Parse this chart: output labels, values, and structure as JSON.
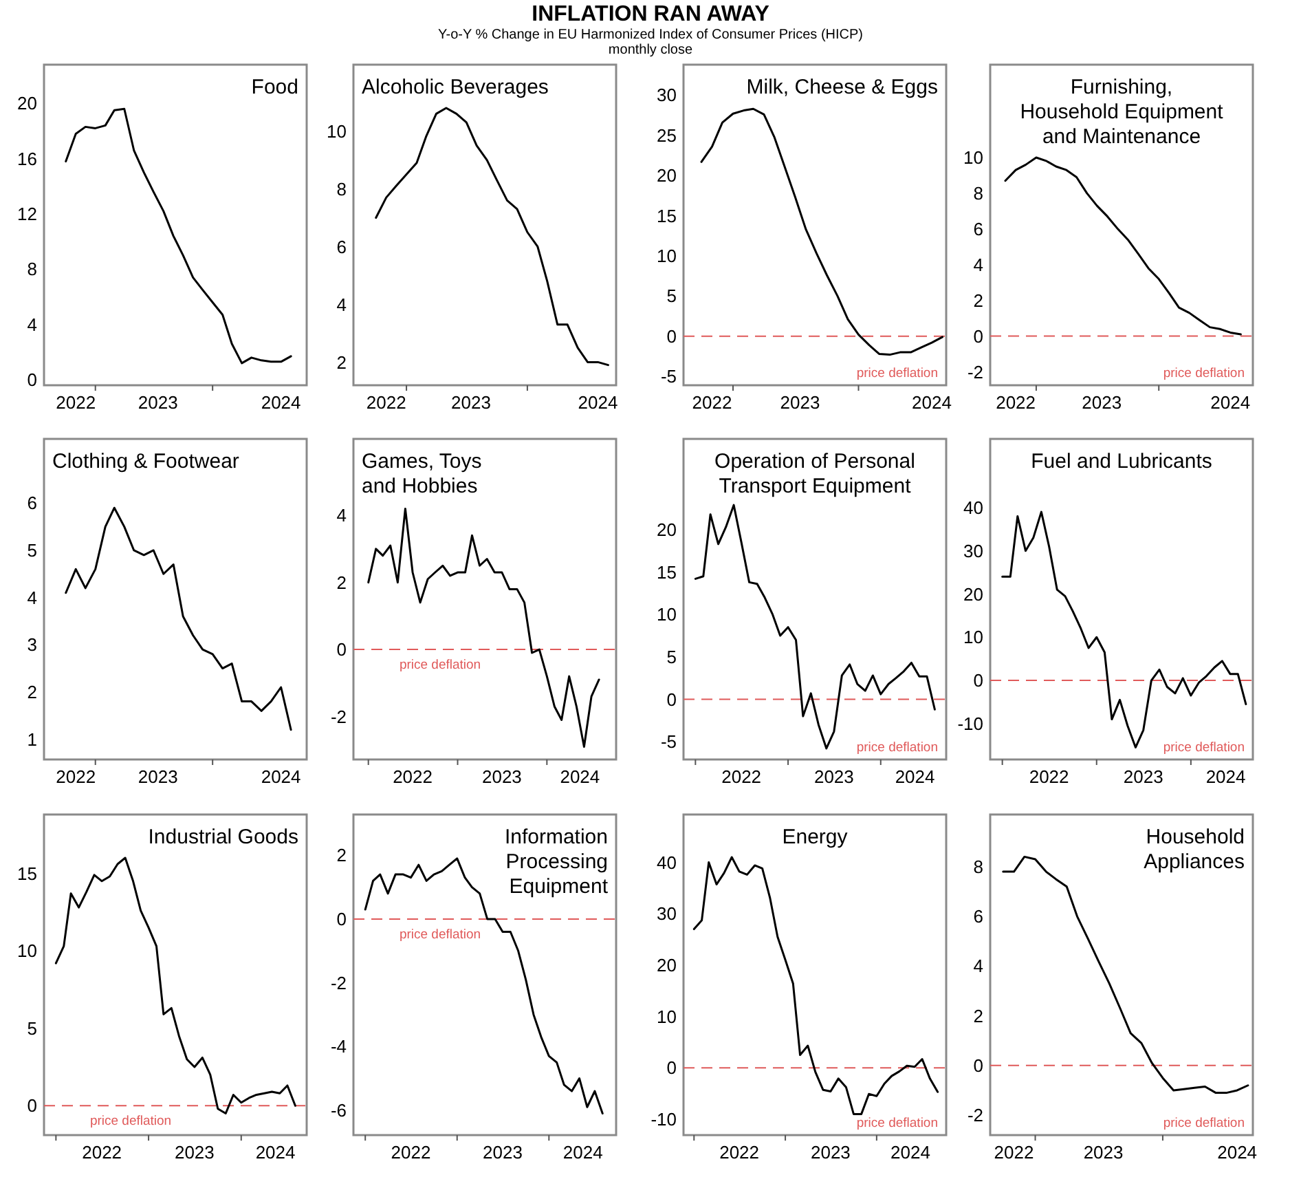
{
  "chart_data": [
    {
      "type": "other",
      "title": "INFLATION RAN AWAY",
      "subtitle": "Y-o-Y % Change in EU Harmonized Index of Consumer Prices (HICP)\nmonthly close"
    },
    {
      "type": "line",
      "title": "Food",
      "color": "#000000",
      "x": [
        "2022-10",
        "2022-11",
        "2022-12",
        "2023-01",
        "2023-02",
        "2023-03",
        "2023-04",
        "2023-05",
        "2023-06",
        "2023-07",
        "2023-08",
        "2023-09",
        "2023-10",
        "2023-11",
        "2023-12",
        "2024-01",
        "2024-02",
        "2024-03",
        "2024-04",
        "2024-05",
        "2024-06",
        "2024-07",
        "2024-08",
        "2024-09"
      ],
      "values": [
        15.8,
        17.8,
        18.3,
        18.2,
        18.4,
        19.5,
        19.6,
        16.6,
        15.0,
        13.6,
        12.2,
        10.4,
        9.0,
        7.4,
        6.5,
        5.6,
        4.7,
        2.6,
        1.2,
        1.6,
        1.4,
        1.3,
        1.3,
        1.7
      ],
      "xlim": [
        "2022-07-25",
        "2024-10-20"
      ],
      "ylim": [
        -0.4,
        22.8
      ],
      "yticks": [
        0,
        4,
        8,
        12,
        16,
        20
      ],
      "xticks": [
        {
          "value": "2022-11-01",
          "label": "2022"
        },
        {
          "value": "2023-01-01",
          "label": null
        },
        {
          "value": "2023-07-15",
          "label": "2023"
        },
        {
          "value": "2024-01-01",
          "label": null
        },
        {
          "value": "2024-08-01",
          "label": "2024"
        }
      ]
    },
    {
      "type": "line",
      "title": "Alcoholic Beverages",
      "color": "#000000",
      "x": [
        "2022-10",
        "2022-11",
        "2022-12",
        "2023-01",
        "2023-02",
        "2023-03",
        "2023-04",
        "2023-05",
        "2023-06",
        "2023-07",
        "2023-08",
        "2023-09",
        "2023-10",
        "2023-11",
        "2023-12",
        "2024-01",
        "2024-02",
        "2024-03",
        "2024-04",
        "2024-05",
        "2024-06",
        "2024-07",
        "2024-08",
        "2024-09"
      ],
      "values": [
        7.0,
        7.7,
        8.1,
        8.5,
        8.9,
        9.8,
        10.6,
        10.8,
        10.6,
        10.3,
        9.5,
        9.0,
        8.3,
        7.6,
        7.3,
        6.5,
        6.0,
        4.8,
        3.3,
        3.3,
        2.5,
        2.0,
        2.0,
        1.9
      ],
      "xlim": [
        "2022-07-25",
        "2024-09-25"
      ],
      "ylim": [
        1.2,
        12.3
      ],
      "yticks": [
        2,
        4,
        6,
        8,
        10
      ],
      "xticks": [
        {
          "value": "2022-11-01",
          "label": "2022"
        },
        {
          "value": "2023-01-01",
          "label": null
        },
        {
          "value": "2023-07-15",
          "label": "2023"
        },
        {
          "value": "2024-01-01",
          "label": null
        },
        {
          "value": "2024-08-01",
          "label": "2024"
        }
      ]
    },
    {
      "type": "line",
      "title": "Milk, Cheese & Eggs",
      "color": "#000000",
      "x": [
        "2022-10",
        "2022-11",
        "2022-12",
        "2023-01",
        "2023-02",
        "2023-03",
        "2023-04",
        "2023-05",
        "2023-06",
        "2023-07",
        "2023-08",
        "2023-09",
        "2023-10",
        "2023-11",
        "2023-12",
        "2024-01",
        "2024-02",
        "2024-03",
        "2024-04",
        "2024-05",
        "2024-06",
        "2024-07",
        "2024-08",
        "2024-09"
      ],
      "values": [
        21.7,
        23.6,
        26.6,
        27.7,
        28.1,
        28.3,
        27.6,
        24.8,
        21.0,
        17.3,
        13.3,
        10.3,
        7.6,
        5.0,
        2.1,
        0.2,
        -1.1,
        -2.2,
        -2.3,
        -2.0,
        -2.0,
        -1.4,
        -0.8,
        -0.1
      ],
      "xlim": [
        "2022-08-10",
        "2024-09-12"
      ],
      "ylim": [
        -6.1,
        33.8
      ],
      "yticks": [
        -5,
        0,
        5,
        10,
        15,
        20,
        25,
        30
      ],
      "xticks": [
        {
          "value": "2022-11-01",
          "label": "2022"
        },
        {
          "value": "2023-01-01",
          "label": null
        },
        {
          "value": "2023-07-15",
          "label": "2023"
        },
        {
          "value": "2024-01-01",
          "label": null
        },
        {
          "value": "2024-08-01",
          "label": "2024"
        }
      ],
      "ref_lines": [
        {
          "axis": "y",
          "value": 0,
          "label": "price deflation",
          "color": "#e05a5a",
          "line_style": "dashed"
        }
      ]
    },
    {
      "type": "line",
      "title": "Furnishing,\nHousehold Equipment\nand Maintenance",
      "color": "#000000",
      "x": [
        "2022-10",
        "2022-11",
        "2022-12",
        "2023-01",
        "2023-02",
        "2023-03",
        "2023-04",
        "2023-05",
        "2023-06",
        "2023-07",
        "2023-08",
        "2023-09",
        "2023-10",
        "2023-11",
        "2023-12",
        "2024-01",
        "2024-02",
        "2024-03",
        "2024-04",
        "2024-05",
        "2024-06",
        "2024-07",
        "2024-08",
        "2024-09"
      ],
      "values": [
        8.7,
        9.3,
        9.6,
        10.0,
        9.8,
        9.5,
        9.3,
        8.9,
        8.0,
        7.3,
        6.7,
        6.0,
        5.4,
        4.6,
        3.8,
        3.2,
        2.4,
        1.6,
        1.3,
        0.9,
        0.5,
        0.4,
        0.2,
        0.1
      ],
      "xlim": [
        "2022-08-17",
        "2024-10-07"
      ],
      "ylim": [
        -2.75,
        15.2
      ],
      "yticks": [
        -2,
        0,
        2,
        4,
        6,
        8,
        10
      ],
      "xticks": [
        {
          "value": "2022-11-01",
          "label": "2022"
        },
        {
          "value": "2023-01-01",
          "label": null
        },
        {
          "value": "2023-07-15",
          "label": "2023"
        },
        {
          "value": "2024-01-01",
          "label": null
        },
        {
          "value": "2024-08-01",
          "label": "2024"
        }
      ],
      "ref_lines": [
        {
          "axis": "y",
          "value": 0,
          "label": "price deflation",
          "color": "#e05a5a",
          "line_style": "dashed"
        }
      ]
    },
    {
      "type": "line",
      "title": "Clothing & Footwear",
      "color": "#000000",
      "x": [
        "2022-10",
        "2022-11",
        "2022-12",
        "2023-01",
        "2023-02",
        "2023-03",
        "2023-04",
        "2023-05",
        "2023-06",
        "2023-07",
        "2023-08",
        "2023-09",
        "2023-10",
        "2023-11",
        "2023-12",
        "2024-01",
        "2024-02",
        "2024-03",
        "2024-04",
        "2024-05",
        "2024-06",
        "2024-07",
        "2024-08",
        "2024-09"
      ],
      "values": [
        4.1,
        4.6,
        4.2,
        4.6,
        5.5,
        5.9,
        5.5,
        5.0,
        4.9,
        5.0,
        4.5,
        4.7,
        3.6,
        3.2,
        2.9,
        2.8,
        2.5,
        2.6,
        1.8,
        1.8,
        1.6,
        1.8,
        2.1,
        1.2
      ],
      "xlim": [
        "2022-07-25",
        "2024-10-20"
      ],
      "ylim": [
        0.57,
        7.36
      ],
      "yticks": [
        1,
        2,
        3,
        4,
        5,
        6
      ],
      "xticks": [
        {
          "value": "2022-11-01",
          "label": "2022"
        },
        {
          "value": "2023-01-01",
          "label": null
        },
        {
          "value": "2023-07-15",
          "label": "2023"
        },
        {
          "value": "2024-01-01",
          "label": null
        },
        {
          "value": "2024-08-01",
          "label": "2024"
        }
      ]
    },
    {
      "type": "line",
      "title": "Games, Toys\nand Hobbies",
      "color": "#000000",
      "x": [
        "2022-01",
        "2022-02",
        "2022-03",
        "2022-04",
        "2022-05",
        "2022-06",
        "2022-07",
        "2022-08",
        "2022-09",
        "2022-10",
        "2022-11",
        "2022-12",
        "2023-01",
        "2023-02",
        "2023-03",
        "2023-04",
        "2023-05",
        "2023-06",
        "2023-07",
        "2023-08",
        "2023-09",
        "2023-10",
        "2023-11",
        "2023-12",
        "2024-01",
        "2024-02",
        "2024-03",
        "2024-04",
        "2024-05",
        "2024-06",
        "2024-07",
        "2024-08"
      ],
      "values": [
        2.0,
        3.0,
        2.8,
        3.1,
        2.0,
        4.2,
        2.3,
        1.4,
        2.1,
        2.3,
        2.5,
        2.2,
        2.3,
        2.3,
        3.4,
        2.5,
        2.7,
        2.3,
        2.3,
        1.8,
        1.8,
        1.4,
        -0.1,
        0.0,
        -0.8,
        -1.7,
        -2.1,
        -0.8,
        -1.7,
        -2.9,
        -1.4,
        -0.9
      ],
      "xlim": [
        "2021-11-01",
        "2024-10-10"
      ],
      "ylim": [
        -3.28,
        6.28
      ],
      "yticks": [
        -2,
        0,
        2,
        4
      ],
      "xticks": [
        {
          "value": "2022-01-01",
          "label": null
        },
        {
          "value": "2022-07-01",
          "label": "2022"
        },
        {
          "value": "2023-01-01",
          "label": null
        },
        {
          "value": "2023-07-01",
          "label": "2023"
        },
        {
          "value": "2024-01-01",
          "label": null
        },
        {
          "value": "2024-05-15",
          "label": "2024"
        }
      ],
      "ref_lines": [
        {
          "axis": "y",
          "value": 0,
          "label": "price deflation",
          "color": "#e05a5a",
          "line_style": "dashed"
        }
      ]
    },
    {
      "type": "line",
      "title": "Operation of Personal\nTransport Equipment",
      "color": "#000000",
      "x": [
        "2022-01",
        "2022-02",
        "2022-03",
        "2022-04",
        "2022-05",
        "2022-06",
        "2022-07",
        "2022-08",
        "2022-09",
        "2022-10",
        "2022-11",
        "2022-12",
        "2023-01",
        "2023-02",
        "2023-03",
        "2023-04",
        "2023-05",
        "2023-06",
        "2023-07",
        "2023-08",
        "2023-09",
        "2023-10",
        "2023-11",
        "2023-12",
        "2024-01",
        "2024-02",
        "2024-03",
        "2024-04",
        "2024-05",
        "2024-06",
        "2024-07",
        "2024-08"
      ],
      "values": [
        14.2,
        14.5,
        21.8,
        18.3,
        20.3,
        22.9,
        18.5,
        13.8,
        13.6,
        12.0,
        10.0,
        7.5,
        8.5,
        7.0,
        -2.0,
        0.7,
        -3.0,
        -5.8,
        -3.8,
        2.8,
        4.1,
        1.8,
        1.0,
        2.8,
        0.6,
        1.8,
        2.5,
        3.3,
        4.3,
        2.7,
        2.7,
        -1.2
      ],
      "xlim": [
        "2021-11-15",
        "2024-09-15"
      ],
      "ylim": [
        -7.1,
        30.7
      ],
      "yticks": [
        -5,
        0,
        5,
        10,
        15,
        20
      ],
      "xticks": [
        {
          "value": "2022-01-01",
          "label": null
        },
        {
          "value": "2022-07-01",
          "label": "2022"
        },
        {
          "value": "2023-01-01",
          "label": null
        },
        {
          "value": "2023-07-01",
          "label": "2023"
        },
        {
          "value": "2024-01-01",
          "label": null
        },
        {
          "value": "2024-05-15",
          "label": "2024"
        }
      ],
      "ref_lines": [
        {
          "axis": "y",
          "value": 0,
          "label": "price deflation",
          "color": "#e05a5a",
          "line_style": "dashed"
        }
      ]
    },
    {
      "type": "line",
      "title": "Fuel and Lubricants",
      "color": "#000000",
      "x": [
        "2022-01",
        "2022-02",
        "2022-03",
        "2022-04",
        "2022-05",
        "2022-06",
        "2022-07",
        "2022-08",
        "2022-09",
        "2022-10",
        "2022-11",
        "2022-12",
        "2023-01",
        "2023-02",
        "2023-03",
        "2023-04",
        "2023-05",
        "2023-06",
        "2023-07",
        "2023-08",
        "2023-09",
        "2023-10",
        "2023-11",
        "2023-12",
        "2024-01",
        "2024-02",
        "2024-03",
        "2024-04",
        "2024-05",
        "2024-06",
        "2024-07",
        "2024-08"
      ],
      "values": [
        24,
        24,
        38,
        30,
        33,
        39,
        31,
        21,
        19.5,
        16,
        12,
        7.5,
        10,
        6.5,
        -9,
        -4.5,
        -10.5,
        -15.5,
        -11.5,
        0,
        2.5,
        -1.5,
        -3,
        0.5,
        -3.5,
        -0.5,
        1,
        3,
        4.5,
        1.5,
        1.5,
        -5.5
      ],
      "xlim": [
        "2021-11-15",
        "2024-08-28"
      ],
      "ylim": [
        -18.3,
        55.9
      ],
      "yticks": [
        -10,
        0,
        10,
        20,
        30,
        40
      ],
      "xticks": [
        {
          "value": "2022-01-01",
          "label": null
        },
        {
          "value": "2022-07-01",
          "label": "2022"
        },
        {
          "value": "2023-01-01",
          "label": null
        },
        {
          "value": "2023-07-01",
          "label": "2023"
        },
        {
          "value": "2024-01-01",
          "label": null
        },
        {
          "value": "2024-05-15",
          "label": "2024"
        }
      ],
      "ref_lines": [
        {
          "axis": "y",
          "value": 0,
          "label": "price deflation",
          "color": "#e05a5a",
          "line_style": "dashed"
        }
      ]
    },
    {
      "type": "line",
      "title": "Industrial Goods",
      "color": "#000000",
      "x": [
        "2022-01",
        "2022-02",
        "2022-03",
        "2022-04",
        "2022-05",
        "2022-06",
        "2022-07",
        "2022-08",
        "2022-09",
        "2022-10",
        "2022-11",
        "2022-12",
        "2023-01",
        "2023-02",
        "2023-03",
        "2023-04",
        "2023-05",
        "2023-06",
        "2023-07",
        "2023-08",
        "2023-09",
        "2023-10",
        "2023-11",
        "2023-12",
        "2024-01",
        "2024-02",
        "2024-03",
        "2024-04",
        "2024-05",
        "2024-06",
        "2024-07",
        "2024-08"
      ],
      "values": [
        9.2,
        10.3,
        13.7,
        12.8,
        13.8,
        14.9,
        14.5,
        14.8,
        15.6,
        16.0,
        14.5,
        12.6,
        11.5,
        10.3,
        5.9,
        6.3,
        4.5,
        3.0,
        2.5,
        3.1,
        2.0,
        -0.2,
        -0.5,
        0.7,
        0.2,
        0.5,
        0.7,
        0.8,
        0.9,
        0.8,
        1.3,
        0.0
      ],
      "xlim": [
        "2021-11-15",
        "2024-09-15"
      ],
      "ylim": [
        -1.9,
        18.8
      ],
      "yticks": [
        0,
        5,
        10,
        15
      ],
      "xticks": [
        {
          "value": "2022-01-01",
          "label": null
        },
        {
          "value": "2022-07-01",
          "label": "2022"
        },
        {
          "value": "2023-01-01",
          "label": null
        },
        {
          "value": "2023-07-01",
          "label": "2023"
        },
        {
          "value": "2024-01-01",
          "label": null
        },
        {
          "value": "2024-05-15",
          "label": "2024"
        }
      ],
      "ref_lines": [
        {
          "axis": "y",
          "value": 0,
          "label": "price deflation",
          "color": "#e05a5a",
          "line_style": "dashed"
        }
      ]
    },
    {
      "type": "line",
      "title": "Information\nProcessing\nEquipment",
      "color": "#000000",
      "x": [
        "2022-01",
        "2022-02",
        "2022-03",
        "2022-04",
        "2022-05",
        "2022-06",
        "2022-07",
        "2022-08",
        "2022-09",
        "2022-10",
        "2022-11",
        "2022-12",
        "2023-01",
        "2023-02",
        "2023-03",
        "2023-04",
        "2023-05",
        "2023-06",
        "2023-07",
        "2023-08",
        "2023-09",
        "2023-10",
        "2023-11",
        "2023-12",
        "2024-01",
        "2024-02",
        "2024-03",
        "2024-04",
        "2024-05",
        "2024-06",
        "2024-07",
        "2024-08"
      ],
      "values": [
        0.3,
        1.2,
        1.4,
        0.8,
        1.4,
        1.4,
        1.3,
        1.7,
        1.2,
        1.4,
        1.5,
        1.7,
        1.9,
        1.3,
        1.0,
        0.8,
        0.0,
        0.0,
        -0.4,
        -0.4,
        -1.0,
        -1.9,
        -3.0,
        -3.7,
        -4.3,
        -4.5,
        -5.2,
        -5.4,
        -5.0,
        -5.9,
        -5.4,
        -6.1
      ],
      "xlim": [
        "2021-11-15",
        "2024-09-24"
      ],
      "ylim": [
        -6.78,
        3.28
      ],
      "yticks": [
        -6,
        -4,
        -2,
        0,
        2
      ],
      "xticks": [
        {
          "value": "2022-01-01",
          "label": null
        },
        {
          "value": "2022-07-01",
          "label": "2022"
        },
        {
          "value": "2023-01-01",
          "label": null
        },
        {
          "value": "2023-07-01",
          "label": "2023"
        },
        {
          "value": "2024-01-01",
          "label": null
        },
        {
          "value": "2024-05-15",
          "label": "2024"
        }
      ],
      "ref_lines": [
        {
          "axis": "y",
          "value": 0,
          "label": "price deflation",
          "color": "#e05a5a",
          "line_style": "dashed"
        }
      ]
    },
    {
      "type": "line",
      "title": "Energy",
      "color": "#000000",
      "x": [
        "2022-01",
        "2022-02",
        "2022-03",
        "2022-04",
        "2022-05",
        "2022-06",
        "2022-07",
        "2022-08",
        "2022-09",
        "2022-10",
        "2022-11",
        "2022-12",
        "2023-01",
        "2023-02",
        "2023-03",
        "2023-04",
        "2023-05",
        "2023-06",
        "2023-07",
        "2023-08",
        "2023-09",
        "2023-10",
        "2023-11",
        "2023-12",
        "2024-01",
        "2024-02",
        "2024-03",
        "2024-04",
        "2024-05",
        "2024-06",
        "2024-07",
        "2024-08",
        "2024-09"
      ],
      "values": [
        27,
        28.7,
        40,
        35.7,
        37.9,
        41,
        38.2,
        37.6,
        39.4,
        38.8,
        33,
        25.5,
        21,
        16.4,
        2.5,
        4.3,
        -0.8,
        -4.3,
        -4.6,
        -2.1,
        -3.8,
        -9,
        -9,
        -5.1,
        -5.5,
        -3.1,
        -1.6,
        -0.7,
        0.4,
        0.2,
        1.7,
        -2.1,
        -4.7
      ],
      "xlim": [
        "2021-11-20",
        "2024-10-05"
      ],
      "ylim": [
        -13.1,
        49.3
      ],
      "yticks": [
        -10,
        0,
        10,
        20,
        30,
        40
      ],
      "xticks": [
        {
          "value": "2022-01-01",
          "label": null
        },
        {
          "value": "2022-07-01",
          "label": "2022"
        },
        {
          "value": "2023-01-01",
          "label": null
        },
        {
          "value": "2023-07-01",
          "label": "2023"
        },
        {
          "value": "2024-01-01",
          "label": null
        },
        {
          "value": "2024-05-15",
          "label": "2024"
        }
      ],
      "ref_lines": [
        {
          "axis": "y",
          "value": 0,
          "label": "price deflation",
          "color": "#e05a5a",
          "line_style": "dashed"
        }
      ]
    },
    {
      "type": "line",
      "title": "Household\nAppliances",
      "color": "#000000",
      "x": [
        "2022-10",
        "2022-11",
        "2022-12",
        "2023-01",
        "2023-02",
        "2023-03",
        "2023-04",
        "2023-05",
        "2023-06",
        "2023-07",
        "2023-08",
        "2023-09",
        "2023-10",
        "2023-11",
        "2023-12",
        "2024-01",
        "2024-02",
        "2024-03",
        "2024-04",
        "2024-05",
        "2024-06",
        "2024-07",
        "2024-08",
        "2024-09"
      ],
      "values": [
        7.8,
        7.8,
        8.4,
        8.3,
        7.8,
        7.5,
        7.2,
        6.0,
        5.1,
        4.2,
        3.3,
        2.3,
        1.3,
        0.9,
        0.1,
        -0.5,
        -1.0,
        -0.95,
        -0.9,
        -0.85,
        -1.1,
        -1.1,
        -1.0,
        -0.8
      ],
      "xlim": [
        "2022-08-25",
        "2024-09-15"
      ],
      "ylim": [
        -2.8,
        10.1
      ],
      "yticks": [
        -2,
        0,
        2,
        4,
        6,
        8
      ],
      "xticks": [
        {
          "value": "2022-11-01",
          "label": "2022"
        },
        {
          "value": "2023-01-01",
          "label": null
        },
        {
          "value": "2023-07-15",
          "label": "2023"
        },
        {
          "value": "2024-01-01",
          "label": null
        },
        {
          "value": "2024-08-01",
          "label": "2024"
        }
      ],
      "ref_lines": [
        {
          "axis": "y",
          "value": 0,
          "label": "price deflation",
          "color": "#e05a5a",
          "line_style": "dashed"
        }
      ]
    }
  ]
}
